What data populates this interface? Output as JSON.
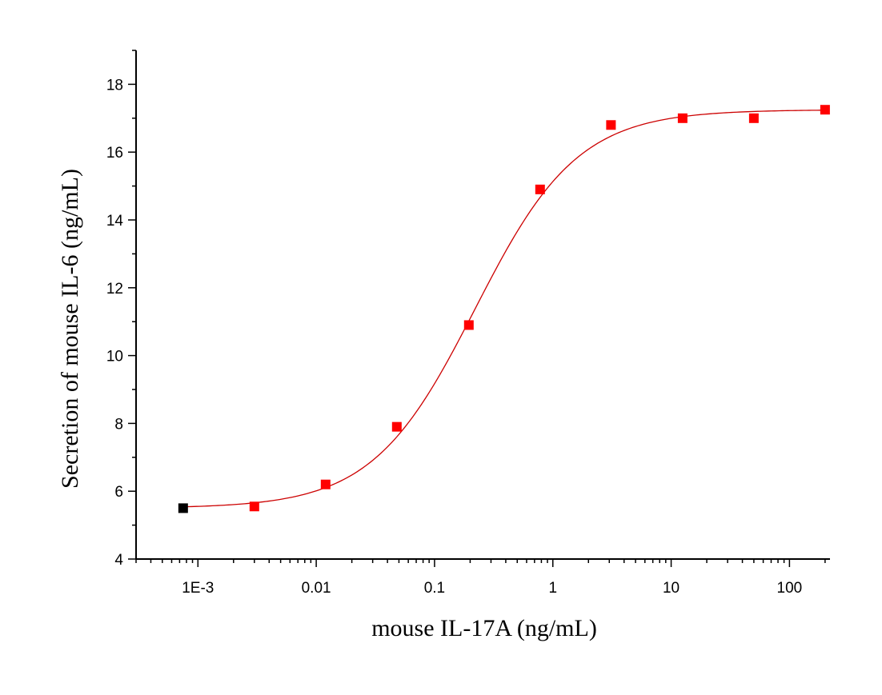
{
  "chart_data": {
    "type": "scatter",
    "xlabel": "mouse IL-17A (ng/mL)",
    "ylabel": "Secretion of mouse IL-6 (ng/mL)",
    "x_scale": "log",
    "xlim": [
      0.0003,
      220
    ],
    "ylim": [
      4,
      19
    ],
    "x_ticks": [
      {
        "value": 0.001,
        "label": "1E-3"
      },
      {
        "value": 0.01,
        "label": "0.01"
      },
      {
        "value": 0.1,
        "label": "0.1"
      },
      {
        "value": 1,
        "label": "1"
      },
      {
        "value": 10,
        "label": "10"
      },
      {
        "value": 100,
        "label": "100"
      }
    ],
    "y_ticks": [
      {
        "value": 4,
        "label": "4"
      },
      {
        "value": 6,
        "label": "6"
      },
      {
        "value": 8,
        "label": "8"
      },
      {
        "value": 10,
        "label": "10"
      },
      {
        "value": 12,
        "label": "12"
      },
      {
        "value": 14,
        "label": "14"
      },
      {
        "value": 16,
        "label": "16"
      },
      {
        "value": 18,
        "label": "18"
      }
    ],
    "series": [
      {
        "marker": "square",
        "color": "#000000",
        "points": [
          {
            "x": 0.00075,
            "y": 5.5
          }
        ]
      },
      {
        "marker": "square",
        "color": "#ff0000",
        "points": [
          {
            "x": 0.003,
            "y": 5.55
          },
          {
            "x": 0.012,
            "y": 6.2
          },
          {
            "x": 0.048,
            "y": 7.9
          },
          {
            "x": 0.195,
            "y": 10.9
          },
          {
            "x": 0.78,
            "y": 14.9
          },
          {
            "x": 3.1,
            "y": 16.8
          },
          {
            "x": 12.5,
            "y": 17.0
          },
          {
            "x": 50,
            "y": 17.0
          },
          {
            "x": 200,
            "y": 17.25
          }
        ]
      }
    ],
    "fit_curve": {
      "type": "logistic",
      "color": "#cc0000",
      "bottom": 5.5,
      "top": 17.25,
      "ec50": 0.22,
      "hill": 1.0,
      "x_range": [
        0.00075,
        200
      ]
    },
    "grid": false,
    "legend": "none"
  }
}
